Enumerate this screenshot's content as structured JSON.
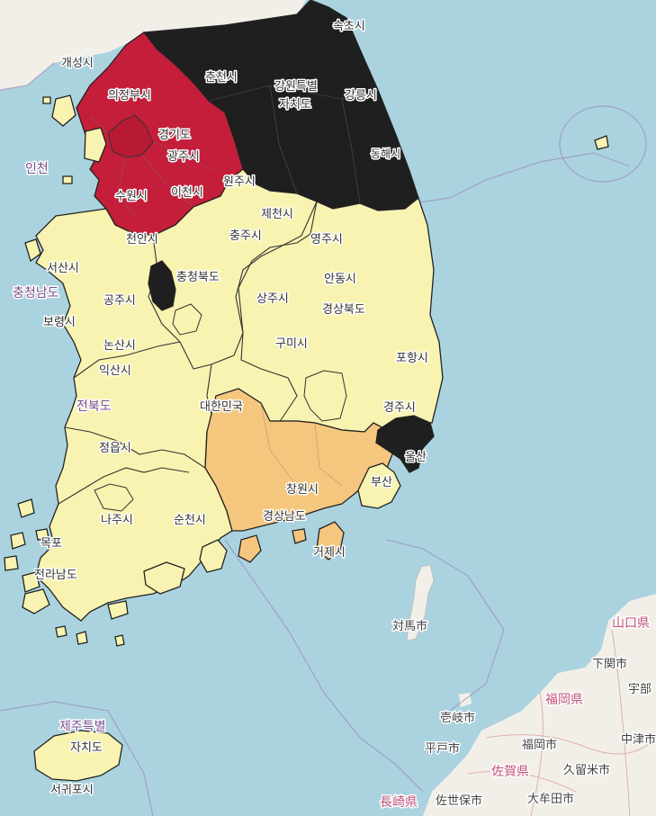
{
  "colors": {
    "sea": "#aad3df",
    "land": "#f2efe9",
    "level_red": "#c41e3a",
    "level_black": "#1f1f1f",
    "level_orange": "#f5c77e",
    "level_light": "#f8f3b0"
  },
  "labels": {
    "kaesong": "개성시",
    "uijeongbu": "의정부시",
    "chuncheon": "춘천시",
    "sokcho": "속초시",
    "gangwon1": "강원특별",
    "gangwon2": "자치도",
    "gangneung": "강릉시",
    "donghae": "동해시",
    "incheon": "인천",
    "gyeonggi": "경기도",
    "gwangju_g": "광주시",
    "suwon": "수원시",
    "icheon": "이천시",
    "wonju": "원주시",
    "jecheon": "제천시",
    "chungju": "충주시",
    "yeongju": "영주시",
    "cheonan": "천안시",
    "seosan": "서산시",
    "chungnam": "충청남도",
    "chungbuk": "충청북도",
    "andong": "안동시",
    "sangju": "상주시",
    "gyeongbuk": "경상북도",
    "gongju": "공주시",
    "boryeong": "보령시",
    "gumi": "구미시",
    "pohang": "포항시",
    "nonsan": "논산시",
    "iksan": "익산시",
    "jeonbuk": "전북도",
    "korea": "대한민국",
    "gyeongju": "경주시",
    "ulsan": "울산",
    "jeongeup": "정읍시",
    "changwon": "창원시",
    "busan": "부산",
    "naju": "나주시",
    "suncheon": "순천시",
    "gyeongnam": "경상남도",
    "geoje": "거제시",
    "mokpo": "목포",
    "jeonnam": "전라남도",
    "tsushima": "対馬市",
    "yamaguchi": "山口県",
    "shimonoseki": "下関市",
    "ube": "宇部",
    "fukuoka_pref": "福岡県",
    "iki": "壱岐市",
    "fukuoka_city": "福岡市",
    "nakatsu": "中津市",
    "hirado": "平戸市",
    "saga": "佐賀県",
    "kurume": "久留米市",
    "jeju1": "제주특별",
    "jeju2": "자치도",
    "seogwipo": "서귀포시",
    "nagasaki": "長崎県",
    "sasebo": "佐世保市",
    "omuta": "大牟田市"
  }
}
